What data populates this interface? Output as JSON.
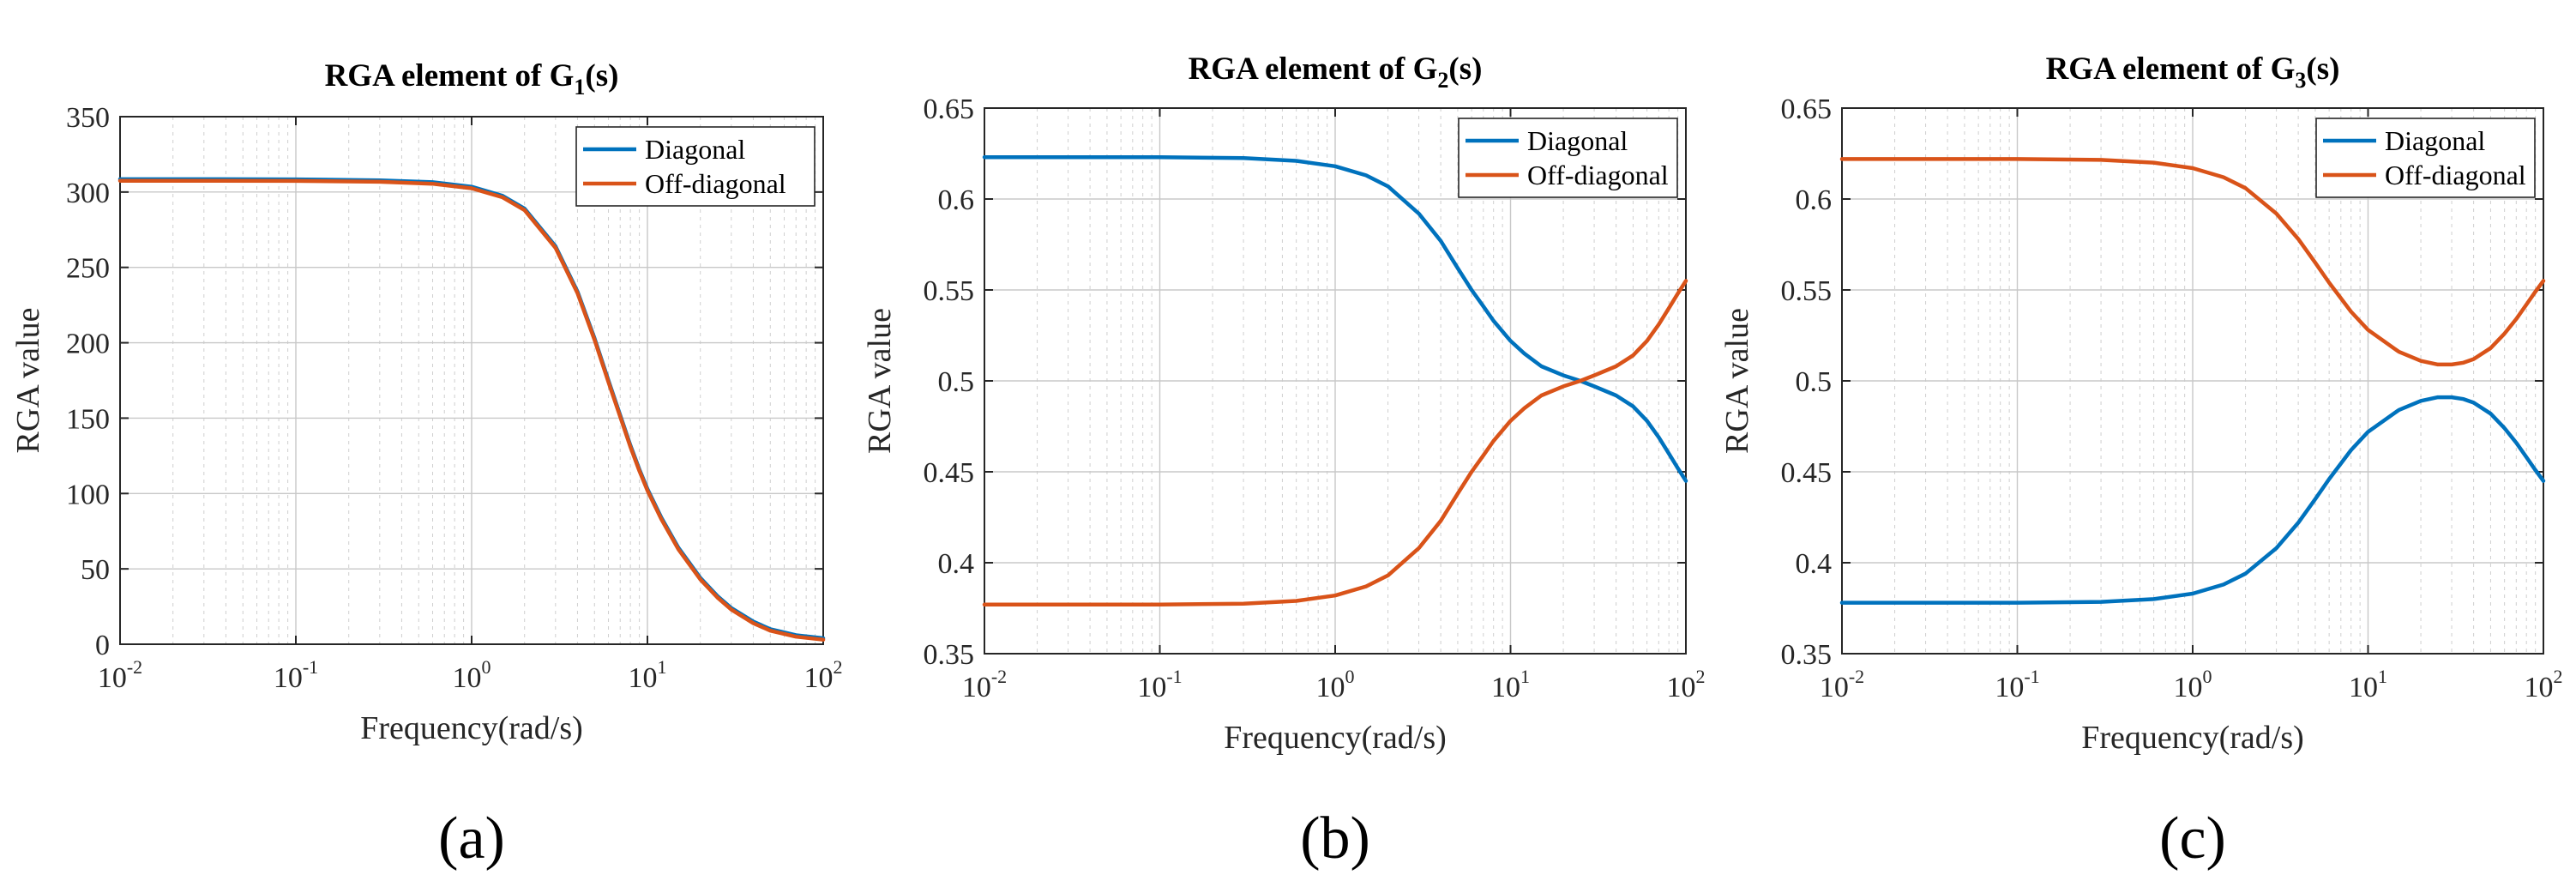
{
  "chart_data": [
    {
      "type": "line",
      "title_main": "RGA element of G",
      "title_sub": "1",
      "title_tail": "(s)",
      "xlabel": "Frequency(rad/s)",
      "ylabel": "RGA value",
      "xscale": "log",
      "xlim": [
        0.01,
        100
      ],
      "ylim": [
        0,
        350
      ],
      "xtick_exponents": [
        "-2",
        "-1",
        "0",
        "1",
        "2"
      ],
      "xtick_base": "10",
      "yticks": [
        "0",
        "50",
        "100",
        "150",
        "200",
        "250",
        "300",
        "350"
      ],
      "grid": true,
      "legend_position": "top-right",
      "panel_label": "(a)",
      "series": [
        {
          "name": "Diagonal",
          "color": "#0072BD",
          "x": [
            0.01,
            0.03,
            0.1,
            0.3,
            0.6,
            1,
            1.5,
            2,
            3,
            4,
            5,
            6,
            7,
            8,
            9,
            10,
            12,
            15,
            20,
            25,
            30,
            40,
            50,
            70,
            100
          ],
          "values": [
            308.5,
            308.5,
            308.4,
            307.8,
            306.5,
            303.5,
            297.5,
            289,
            264,
            234,
            203,
            175,
            152,
            132,
            116,
            103,
            84,
            64,
            44,
            32,
            24,
            15,
            10,
            6,
            4
          ]
        },
        {
          "name": "Off-diagonal",
          "color": "#D95319",
          "x": [
            0.01,
            0.03,
            0.1,
            0.3,
            0.6,
            1,
            1.5,
            2,
            3,
            4,
            5,
            6,
            7,
            8,
            9,
            10,
            12,
            15,
            20,
            25,
            30,
            40,
            50,
            70,
            100
          ],
          "values": [
            307.5,
            307.5,
            307.4,
            306.8,
            305.5,
            302.5,
            296.5,
            288,
            263,
            233,
            202,
            174,
            151,
            131,
            115,
            102,
            83,
            63,
            43,
            31,
            23,
            14,
            9,
            5,
            3
          ]
        }
      ]
    },
    {
      "type": "line",
      "title_main": "RGA element of G",
      "title_sub": "2",
      "title_tail": "(s)",
      "xlabel": "Frequency(rad/s)",
      "ylabel": "RGA value",
      "xscale": "log",
      "xlim": [
        0.01,
        100
      ],
      "ylim": [
        0.35,
        0.65
      ],
      "xtick_exponents": [
        "-2",
        "-1",
        "0",
        "1",
        "2"
      ],
      "xtick_base": "10",
      "yticks": [
        "0.35",
        "0.4",
        "0.45",
        "0.5",
        "0.55",
        "0.6",
        "0.65"
      ],
      "grid": true,
      "legend_position": "top-right",
      "panel_label": "(b)",
      "series": [
        {
          "name": "Diagonal",
          "color": "#0072BD",
          "x": [
            0.01,
            0.1,
            0.3,
            0.6,
            1,
            1.5,
            2,
            3,
            4,
            5,
            6,
            7,
            8,
            10,
            12,
            15,
            20,
            25,
            30,
            40,
            50,
            60,
            70,
            80,
            90,
            100
          ],
          "values": [
            0.623,
            0.623,
            0.6225,
            0.621,
            0.618,
            0.613,
            0.607,
            0.592,
            0.577,
            0.562,
            0.55,
            0.541,
            0.533,
            0.522,
            0.515,
            0.508,
            0.503,
            0.5,
            0.497,
            0.492,
            0.486,
            0.478,
            0.469,
            0.46,
            0.452,
            0.445
          ]
        },
        {
          "name": "Off-diagonal",
          "color": "#D95319",
          "x": [
            0.01,
            0.1,
            0.3,
            0.6,
            1,
            1.5,
            2,
            3,
            4,
            5,
            6,
            7,
            8,
            10,
            12,
            15,
            20,
            25,
            30,
            40,
            50,
            60,
            70,
            80,
            90,
            100
          ],
          "values": [
            0.377,
            0.377,
            0.3775,
            0.379,
            0.382,
            0.387,
            0.393,
            0.408,
            0.423,
            0.438,
            0.45,
            0.459,
            0.467,
            0.478,
            0.485,
            0.492,
            0.497,
            0.5,
            0.503,
            0.508,
            0.514,
            0.522,
            0.531,
            0.54,
            0.548,
            0.555
          ]
        }
      ]
    },
    {
      "type": "line",
      "title_main": "RGA element of G",
      "title_sub": "3",
      "title_tail": "(s)",
      "xlabel": "Frequency(rad/s)",
      "ylabel": "RGA value",
      "xscale": "log",
      "xlim": [
        0.01,
        100
      ],
      "ylim": [
        0.35,
        0.65
      ],
      "xtick_exponents": [
        "-2",
        "-1",
        "0",
        "1",
        "2"
      ],
      "xtick_base": "10",
      "yticks": [
        "0.35",
        "0.4",
        "0.45",
        "0.5",
        "0.55",
        "0.6",
        "0.65"
      ],
      "grid": true,
      "legend_position": "top-right",
      "panel_label": "(c)",
      "series": [
        {
          "name": "Diagonal",
          "color": "#0072BD",
          "x": [
            0.01,
            0.1,
            0.3,
            0.6,
            1,
            1.5,
            2,
            3,
            4,
            5,
            6,
            8,
            10,
            15,
            20,
            25,
            30,
            35,
            40,
            50,
            60,
            70,
            80,
            90,
            100
          ],
          "values": [
            0.378,
            0.378,
            0.3785,
            0.38,
            0.383,
            0.388,
            0.394,
            0.408,
            0.422,
            0.435,
            0.446,
            0.462,
            0.472,
            0.484,
            0.489,
            0.491,
            0.491,
            0.49,
            0.488,
            0.482,
            0.474,
            0.466,
            0.458,
            0.451,
            0.445
          ]
        },
        {
          "name": "Off-diagonal",
          "color": "#D95319",
          "x": [
            0.01,
            0.1,
            0.3,
            0.6,
            1,
            1.5,
            2,
            3,
            4,
            5,
            6,
            8,
            10,
            15,
            20,
            25,
            30,
            35,
            40,
            50,
            60,
            70,
            80,
            90,
            100
          ],
          "values": [
            0.622,
            0.622,
            0.6215,
            0.62,
            0.617,
            0.612,
            0.606,
            0.592,
            0.578,
            0.565,
            0.554,
            0.538,
            0.528,
            0.516,
            0.511,
            0.509,
            0.509,
            0.51,
            0.512,
            0.518,
            0.526,
            0.534,
            0.542,
            0.549,
            0.555
          ]
        }
      ]
    }
  ]
}
